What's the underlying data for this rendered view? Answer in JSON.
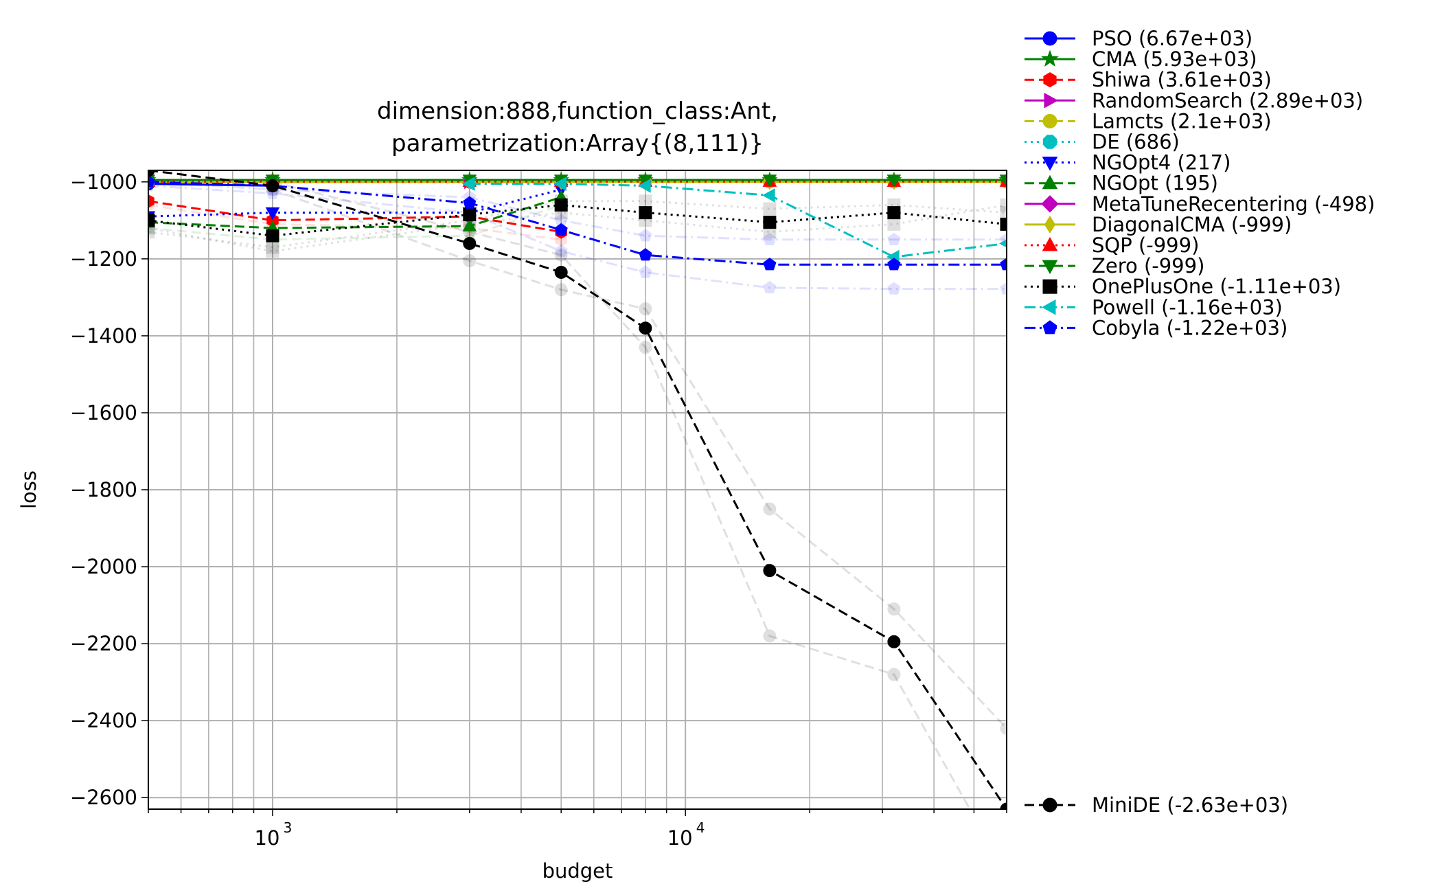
{
  "chart_data": {
    "type": "line",
    "title_line1": "dimension:888,function_class:Ant,",
    "title_line2": "parametrization:Array{(8,111)}",
    "xlabel": "budget",
    "ylabel": "loss",
    "xscale": "log",
    "xlim": [
      500,
      60000
    ],
    "ylim": [
      -2630,
      -970
    ],
    "x_tick_labels": [
      {
        "value": 1000,
        "base": "10",
        "exp": "3"
      },
      {
        "value": 10000,
        "base": "10",
        "exp": "4"
      }
    ],
    "y_ticks": [
      -1000,
      -1200,
      -1400,
      -1600,
      -1800,
      -2000,
      -2200,
      -2400,
      -2600
    ],
    "y_tick_labels": [
      "−1000",
      "−1200",
      "−1400",
      "−1600",
      "−1800",
      "−2000",
      "−2200",
      "−2400",
      "−2600"
    ],
    "grid": true,
    "legend_position": "outside-right",
    "series": [
      {
        "name": "PSO (6.67e+03)",
        "color": "#0000ff",
        "dash": "solid",
        "marker": "circle",
        "x": [
          500,
          1000
        ],
        "y": [
          -1005,
          -1010
        ]
      },
      {
        "name": "CMA (5.93e+03)",
        "color": "#008000",
        "dash": "solid",
        "marker": "star",
        "x": [
          500,
          1000,
          3000,
          5000,
          8000,
          16000,
          32000,
          60000
        ],
        "y": [
          -995,
          -995,
          -995,
          -995,
          -995,
          -995,
          -995,
          -995
        ]
      },
      {
        "name": "Shiwa (3.61e+03)",
        "color": "#ff0000",
        "dash": "dashed",
        "marker": "hexagon",
        "x": [
          500,
          1000,
          3000,
          5000
        ],
        "y": [
          -1050,
          -1100,
          -1090,
          -1130
        ]
      },
      {
        "name": "RandomSearch (2.89e+03)",
        "color": "#bf00bf",
        "dash": "solid",
        "marker": "triangle-right",
        "x": [
          500,
          1000,
          3000,
          5000
        ],
        "y": [
          -1000,
          -1000,
          -1000,
          -1000
        ]
      },
      {
        "name": "Lamcts (2.1e+03)",
        "color": "#bfbf00",
        "dash": "dashed",
        "marker": "circle",
        "x": [
          500,
          1000,
          3000,
          5000,
          8000,
          16000,
          32000,
          60000
        ],
        "y": [
          -1000,
          -1000,
          -1000,
          -1000,
          -1000,
          -1000,
          -1000,
          -1000
        ]
      },
      {
        "name": "DE (686)",
        "color": "#00bfbf",
        "dash": "dotted",
        "marker": "octagon",
        "x": [
          500,
          1000,
          3000,
          5000
        ],
        "y": [
          -1000,
          -1000,
          -1000,
          -1000
        ]
      },
      {
        "name": "NGOpt4 (217)",
        "color": "#0000ff",
        "dash": "dotted",
        "marker": "triangle-down",
        "x": [
          500,
          1000,
          3000,
          5000
        ],
        "y": [
          -1090,
          -1080,
          -1080,
          -1020
        ]
      },
      {
        "name": "NGOpt (195)",
        "color": "#008000",
        "dash": "dashed",
        "marker": "triangle-up",
        "x": [
          500,
          1000,
          3000,
          5000
        ],
        "y": [
          -1105,
          -1120,
          -1115,
          -1040
        ]
      },
      {
        "name": "MetaTuneRecentering (-498)",
        "color": "#bf00bf",
        "dash": "solid",
        "marker": "diamond",
        "x": [
          500,
          1000,
          3000,
          5000
        ],
        "y": [
          -1000,
          -1000,
          -1000,
          -1000
        ]
      },
      {
        "name": "DiagonalCMA (-999)",
        "color": "#bfbf00",
        "dash": "solid",
        "marker": "thin-diamond",
        "x": [
          500,
          1000,
          3000,
          5000,
          8000,
          16000,
          32000,
          60000
        ],
        "y": [
          -1000,
          -1000,
          -1000,
          -1000,
          -1000,
          -1000,
          -1000,
          -1000
        ]
      },
      {
        "name": "SQP (-999)",
        "color": "#ff0000",
        "dash": "dotted",
        "marker": "triangle-up",
        "x": [
          500,
          1000,
          3000,
          5000,
          8000,
          16000,
          32000,
          60000
        ],
        "y": [
          -999,
          -999,
          -999,
          -999,
          -999,
          -999,
          -999,
          -999
        ]
      },
      {
        "name": "Zero (-999)",
        "color": "#008000",
        "dash": "dashed",
        "marker": "triangle-down",
        "x": [
          500,
          1000,
          3000,
          5000,
          8000,
          16000,
          32000,
          60000
        ],
        "y": [
          -995,
          -995,
          -995,
          -995,
          -995,
          -995,
          -995,
          -995
        ]
      },
      {
        "name": "OnePlusOne (-1.11e+03)",
        "color": "#000000",
        "dash": "dotted",
        "marker": "square",
        "x": [
          500,
          1000,
          3000,
          5000,
          8000,
          16000,
          32000,
          60000
        ],
        "y": [
          -1100,
          -1140,
          -1085,
          -1060,
          -1080,
          -1105,
          -1080,
          -1110
        ]
      },
      {
        "name": "Powell (-1.16e+03)",
        "color": "#00bfbf",
        "dash": "dashdot",
        "marker": "triangle-left",
        "x": [
          3000,
          5000,
          8000,
          16000,
          32000,
          60000
        ],
        "y": [
          -1005,
          -1005,
          -1010,
          -1035,
          -1195,
          -1160
        ]
      },
      {
        "name": "Cobyla (-1.22e+03)",
        "color": "#0000ff",
        "dash": "dashdot",
        "marker": "pentagon",
        "x": [
          500,
          1000,
          3000,
          5000,
          8000,
          16000,
          32000,
          60000
        ],
        "y": [
          -1000,
          -1010,
          -1055,
          -1125,
          -1190,
          -1215,
          -1215,
          -1215
        ]
      },
      {
        "name": "MiniDE (-2.63e+03)",
        "color": "#000000",
        "dash": "dashed",
        "marker": "circle",
        "x": [
          500,
          1000,
          3000,
          5000,
          8000,
          16000,
          32000,
          60000
        ],
        "y": [
          -970,
          -1010,
          -1160,
          -1235,
          -1380,
          -2010,
          -2195,
          -2630
        ]
      }
    ],
    "background_series": [
      {
        "color": "#000000",
        "dash": "dashed",
        "marker": "circle",
        "x": [
          1000,
          3000,
          5000,
          8000,
          16000,
          32000,
          60000
        ],
        "y": [
          -1020,
          -1205,
          -1280,
          -1330,
          -1850,
          -2110,
          -2420
        ]
      },
      {
        "color": "#000000",
        "dash": "dashed",
        "marker": "circle",
        "x": [
          1000,
          3000,
          5000,
          8000,
          16000,
          32000,
          60000
        ],
        "y": [
          -1000,
          -1130,
          -1190,
          -1430,
          -2180,
          -2280,
          -2800
        ]
      },
      {
        "color": "#0000ff",
        "dash": "dashdot",
        "marker": "pentagon",
        "x": [
          500,
          1000,
          3000,
          5000,
          8000,
          16000,
          32000,
          60000
        ],
        "y": [
          -1010,
          -1030,
          -1080,
          -1180,
          -1235,
          -1275,
          -1278,
          -1278
        ]
      },
      {
        "color": "#0000ff",
        "dash": "dashdot",
        "marker": "pentagon",
        "x": [
          500,
          1000,
          3000,
          5000,
          8000,
          16000,
          32000,
          60000
        ],
        "y": [
          -1000,
          -1020,
          -1040,
          -1100,
          -1140,
          -1150,
          -1150,
          -1150
        ]
      },
      {
        "color": "#000000",
        "dash": "dotted",
        "marker": "square",
        "x": [
          500,
          1000,
          3000,
          5000,
          8000,
          16000,
          32000,
          60000
        ],
        "y": [
          -1120,
          -1180,
          -1110,
          -1080,
          -1100,
          -1130,
          -1110,
          -1060
        ]
      },
      {
        "color": "#000000",
        "dash": "dotted",
        "marker": "square",
        "x": [
          500,
          1000,
          3000,
          5000,
          8000,
          16000,
          32000,
          60000
        ],
        "y": [
          -1130,
          -1170,
          -1100,
          -1050,
          -1050,
          -1070,
          -1060,
          -1080
        ]
      },
      {
        "color": "#008000",
        "dash": "dashed",
        "marker": "triangle-up",
        "x": [
          500,
          1000,
          3000,
          5000
        ],
        "y": [
          -1120,
          -1150,
          -1140,
          -1060
        ]
      },
      {
        "color": "#ff0000",
        "dash": "dashed",
        "marker": "hexagon",
        "x": [
          500,
          1000,
          3000,
          5000
        ],
        "y": [
          -1060,
          -1110,
          -1120,
          -1150
        ]
      }
    ]
  }
}
